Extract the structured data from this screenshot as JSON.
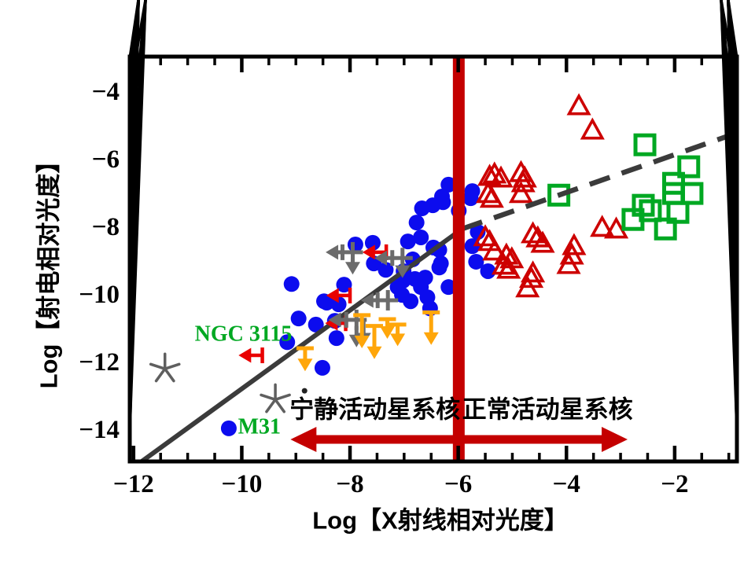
{
  "figure": {
    "background": "#ffffff",
    "frame_color": "#000000"
  },
  "chart_data": {
    "type": "scatter",
    "title": "",
    "xlabel": "Log【X射线相对光度】",
    "ylabel": "Log【射电相对光度】",
    "xlim": [
      -12.07,
      -0.85
    ],
    "ylim": [
      -14.93,
      -2.95
    ],
    "grid": false,
    "legend": "none",
    "x_ticks": {
      "major_values": [
        -12,
        -10,
        -8,
        -6,
        -4,
        -2
      ],
      "major_labels": [
        "−12",
        "−10",
        "−8",
        "−6",
        "−4",
        "−2"
      ],
      "minor_step": 0.5
    },
    "y_ticks": {
      "major_values": [
        -14,
        -12,
        -10,
        -8,
        -6,
        -4
      ],
      "major_labels": [
        "−14",
        "−12",
        "−10",
        "−8",
        "−6",
        "−4"
      ],
      "minor_step": 0.5
    },
    "series": [
      {
        "name": "blue-filled-circles",
        "marker": "filled-circle",
        "color": "#0c0cee",
        "points": [
          [
            -6.18,
            -6.74
          ],
          [
            -5.74,
            -6.93
          ],
          [
            -6.3,
            -7.09
          ],
          [
            -5.77,
            -7.14
          ],
          [
            -6.28,
            -7.26
          ],
          [
            -6.47,
            -7.35
          ],
          [
            -6.67,
            -7.44
          ],
          [
            -5.99,
            -7.51
          ],
          [
            -6.77,
            -7.86
          ],
          [
            -5.64,
            -8.14
          ],
          [
            -6.69,
            -8.3
          ],
          [
            -6.93,
            -8.42
          ],
          [
            -7.9,
            -8.51
          ],
          [
            -7.58,
            -8.46
          ],
          [
            -5.74,
            -8.56
          ],
          [
            -6.46,
            -8.6
          ],
          [
            -6.35,
            -8.67
          ],
          [
            -6.84,
            -8.95
          ],
          [
            -5.67,
            -9.02
          ],
          [
            -6.32,
            -9.07
          ],
          [
            -7.56,
            -9.07
          ],
          [
            -6.35,
            -9.19
          ],
          [
            -7.34,
            -9.26
          ],
          [
            -5.45,
            -9.3
          ],
          [
            -7.01,
            -9.3
          ],
          [
            -6.61,
            -9.49
          ],
          [
            -6.8,
            -9.53
          ],
          [
            -7.02,
            -9.58
          ],
          [
            -9.08,
            -9.68
          ],
          [
            -8.11,
            -9.7
          ],
          [
            -6.69,
            -9.77
          ],
          [
            -7.12,
            -9.77
          ],
          [
            -6.18,
            -9.77
          ],
          [
            -7.04,
            -10.0
          ],
          [
            -6.57,
            -10.07
          ],
          [
            -6.88,
            -10.19
          ],
          [
            -8.48,
            -10.19
          ],
          [
            -8.43,
            -10.23
          ],
          [
            -8.21,
            -10.28
          ],
          [
            -6.52,
            -10.4
          ],
          [
            -8.95,
            -10.7
          ],
          [
            -8.28,
            -10.77
          ],
          [
            -8.63,
            -10.88
          ],
          [
            -8.25,
            -11.28
          ],
          [
            -9.16,
            -11.4
          ],
          [
            -8.51,
            -12.16
          ],
          [
            -10.24,
            -13.95
          ]
        ]
      },
      {
        "name": "red-open-triangles",
        "marker": "open-triangle",
        "color": "#cd0000",
        "points": [
          [
            -3.77,
            -4.42
          ],
          [
            -3.52,
            -5.14
          ],
          [
            -4.84,
            -6.4
          ],
          [
            -5.33,
            -6.44
          ],
          [
            -5.42,
            -6.51
          ],
          [
            -5.21,
            -6.56
          ],
          [
            -4.77,
            -6.56
          ],
          [
            -4.8,
            -6.7
          ],
          [
            -5.45,
            -7.02
          ],
          [
            -4.84,
            -7.02
          ],
          [
            -5.38,
            -7.16
          ],
          [
            -3.34,
            -8.02
          ],
          [
            -3.08,
            -8.07
          ],
          [
            -4.62,
            -8.21
          ],
          [
            -5.5,
            -8.3
          ],
          [
            -4.53,
            -8.33
          ],
          [
            -5.42,
            -8.44
          ],
          [
            -4.44,
            -8.49
          ],
          [
            -3.86,
            -8.56
          ],
          [
            -5.33,
            -8.72
          ],
          [
            -5.11,
            -8.84
          ],
          [
            -3.9,
            -8.84
          ],
          [
            -5.01,
            -8.95
          ],
          [
            -3.96,
            -9.12
          ],
          [
            -5.16,
            -9.14
          ],
          [
            -5.07,
            -9.26
          ],
          [
            -4.62,
            -9.37
          ],
          [
            -4.65,
            -9.53
          ],
          [
            -4.72,
            -9.81
          ]
        ]
      },
      {
        "name": "green-open-squares",
        "marker": "open-square",
        "color": "#00a822",
        "points": [
          [
            -2.55,
            -5.56
          ],
          [
            -1.74,
            -6.21
          ],
          [
            -2.02,
            -6.7
          ],
          [
            -2.02,
            -7.0
          ],
          [
            -1.68,
            -7.0
          ],
          [
            -4.14,
            -7.05
          ],
          [
            -2.58,
            -7.35
          ],
          [
            -2.45,
            -7.51
          ],
          [
            -1.94,
            -7.56
          ],
          [
            -2.77,
            -7.77
          ],
          [
            -2.17,
            -8.05
          ]
        ]
      },
      {
        "name": "gray-stars",
        "marker": "star",
        "color": "#5f5f5f",
        "points": [
          [
            -11.42,
            -12.19
          ],
          [
            -9.38,
            -13.1
          ]
        ]
      }
    ],
    "small_black_dots": [
      [
        -8.84,
        -12.84
      ]
    ],
    "upper_limits": {
      "red_left_arrows": [
        {
          "x": -7.33,
          "y": -8.74,
          "to_x": -7.77
        },
        {
          "x": -8.0,
          "y": -10.02,
          "to_x": -8.44
        },
        {
          "x": -8.08,
          "y": -10.84,
          "to_x": -8.46
        },
        {
          "x": -9.62,
          "y": -11.79,
          "to_x": -10.06
        }
      ],
      "gray_plus_limits": [
        {
          "x": -7.95,
          "y": -8.74,
          "left_to": -8.45,
          "down_to": -9.4
        },
        {
          "x": -7.03,
          "y": -8.91,
          "left_to": -7.55,
          "down_to": -9.5
        },
        {
          "x": -7.3,
          "y": -10.16,
          "left_to": -7.8
        },
        {
          "x": -7.88,
          "y": -10.74,
          "left_to": -8.4,
          "down_to": -11.55
        }
      ],
      "gray_down_arrows": [
        {
          "x": -7.75,
          "from_y": -10.74,
          "to_y": -11.5
        }
      ],
      "orange_down_arrows": [
        {
          "x": -8.83,
          "from_y": -11.58,
          "to_y": -12.26
        },
        {
          "x": -7.78,
          "from_y": -10.6,
          "to_y": -11.58
        },
        {
          "x": -7.55,
          "from_y": -10.92,
          "to_y": -11.9
        },
        {
          "x": -7.31,
          "from_y": -10.72,
          "to_y": -11.3
        },
        {
          "x": -7.12,
          "from_y": -10.88,
          "to_y": -11.52
        },
        {
          "x": -6.5,
          "from_y": -10.52,
          "to_y": -11.48
        }
      ],
      "gray_color": "#6b6b6b",
      "orange_color": "#ffa60a",
      "red_color": "#e90000"
    },
    "fit_line": {
      "color": "#3b3b3b",
      "solid": [
        [
          -11.85,
          -14.93
        ],
        [
          -5.93,
          -8.05
        ]
      ],
      "dashed": [
        [
          -5.93,
          -8.05
        ],
        [
          -0.87,
          -5.22
        ]
      ]
    },
    "divider_line": {
      "x": -5.99,
      "color": "#c40000"
    },
    "region_double_arrow": {
      "y": -14.28,
      "left_tip_x": -9.1,
      "right_tip_x": -2.87,
      "color": "#c40000"
    },
    "annotations": [
      {
        "id": "region-label-left",
        "text": "宁静活动星系核",
        "x": -7.54,
        "y": -13.4,
        "color": "#000000",
        "align": "middle",
        "font": "sans",
        "size": 31
      },
      {
        "id": "region-label-right",
        "text": "正常活动星系核",
        "x": -4.35,
        "y": -13.4,
        "color": "#000000",
        "align": "middle",
        "font": "sans",
        "size": 31
      },
      {
        "id": "label-ngc3115",
        "text": "NGC 3115",
        "x": -9.97,
        "y": -11.16,
        "color": "#00a822",
        "align": "middle",
        "font": "serif",
        "size": 28
      },
      {
        "id": "label-m31",
        "text": "M31",
        "x": -10.07,
        "y": -13.91,
        "color": "#00a822",
        "align": "start",
        "font": "serif",
        "size": 28
      }
    ]
  }
}
